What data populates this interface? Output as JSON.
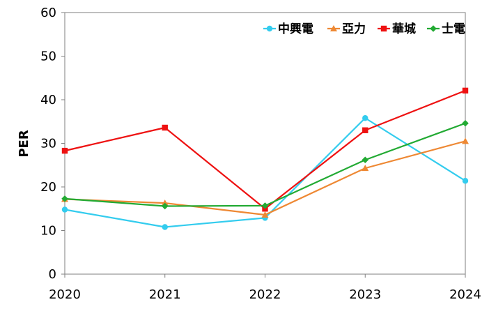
{
  "chart_data": {
    "type": "line",
    "title": "",
    "xlabel": "",
    "ylabel": "PER",
    "x": [
      "2020",
      "2021",
      "2022",
      "2023",
      "2024"
    ],
    "ylim": [
      0,
      60
    ],
    "yticks": [
      0,
      10,
      20,
      30,
      40,
      50,
      60
    ],
    "grid": false,
    "legend_position": "top-right",
    "series": [
      {
        "name": "中興電",
        "color": "#33ccee",
        "marker": "circle",
        "values": [
          14.8,
          10.8,
          12.9,
          35.8,
          21.4
        ]
      },
      {
        "name": "亞力",
        "color": "#ee8833",
        "marker": "triangle",
        "values": [
          17.2,
          16.3,
          13.6,
          24.3,
          30.5
        ]
      },
      {
        "name": "華城",
        "color": "#ee1111",
        "marker": "square",
        "values": [
          28.3,
          33.6,
          15.0,
          33.0,
          42.1
        ]
      },
      {
        "name": "士電",
        "color": "#22aa33",
        "marker": "diamond",
        "values": [
          17.3,
          15.6,
          15.7,
          26.2,
          34.6
        ]
      }
    ]
  }
}
